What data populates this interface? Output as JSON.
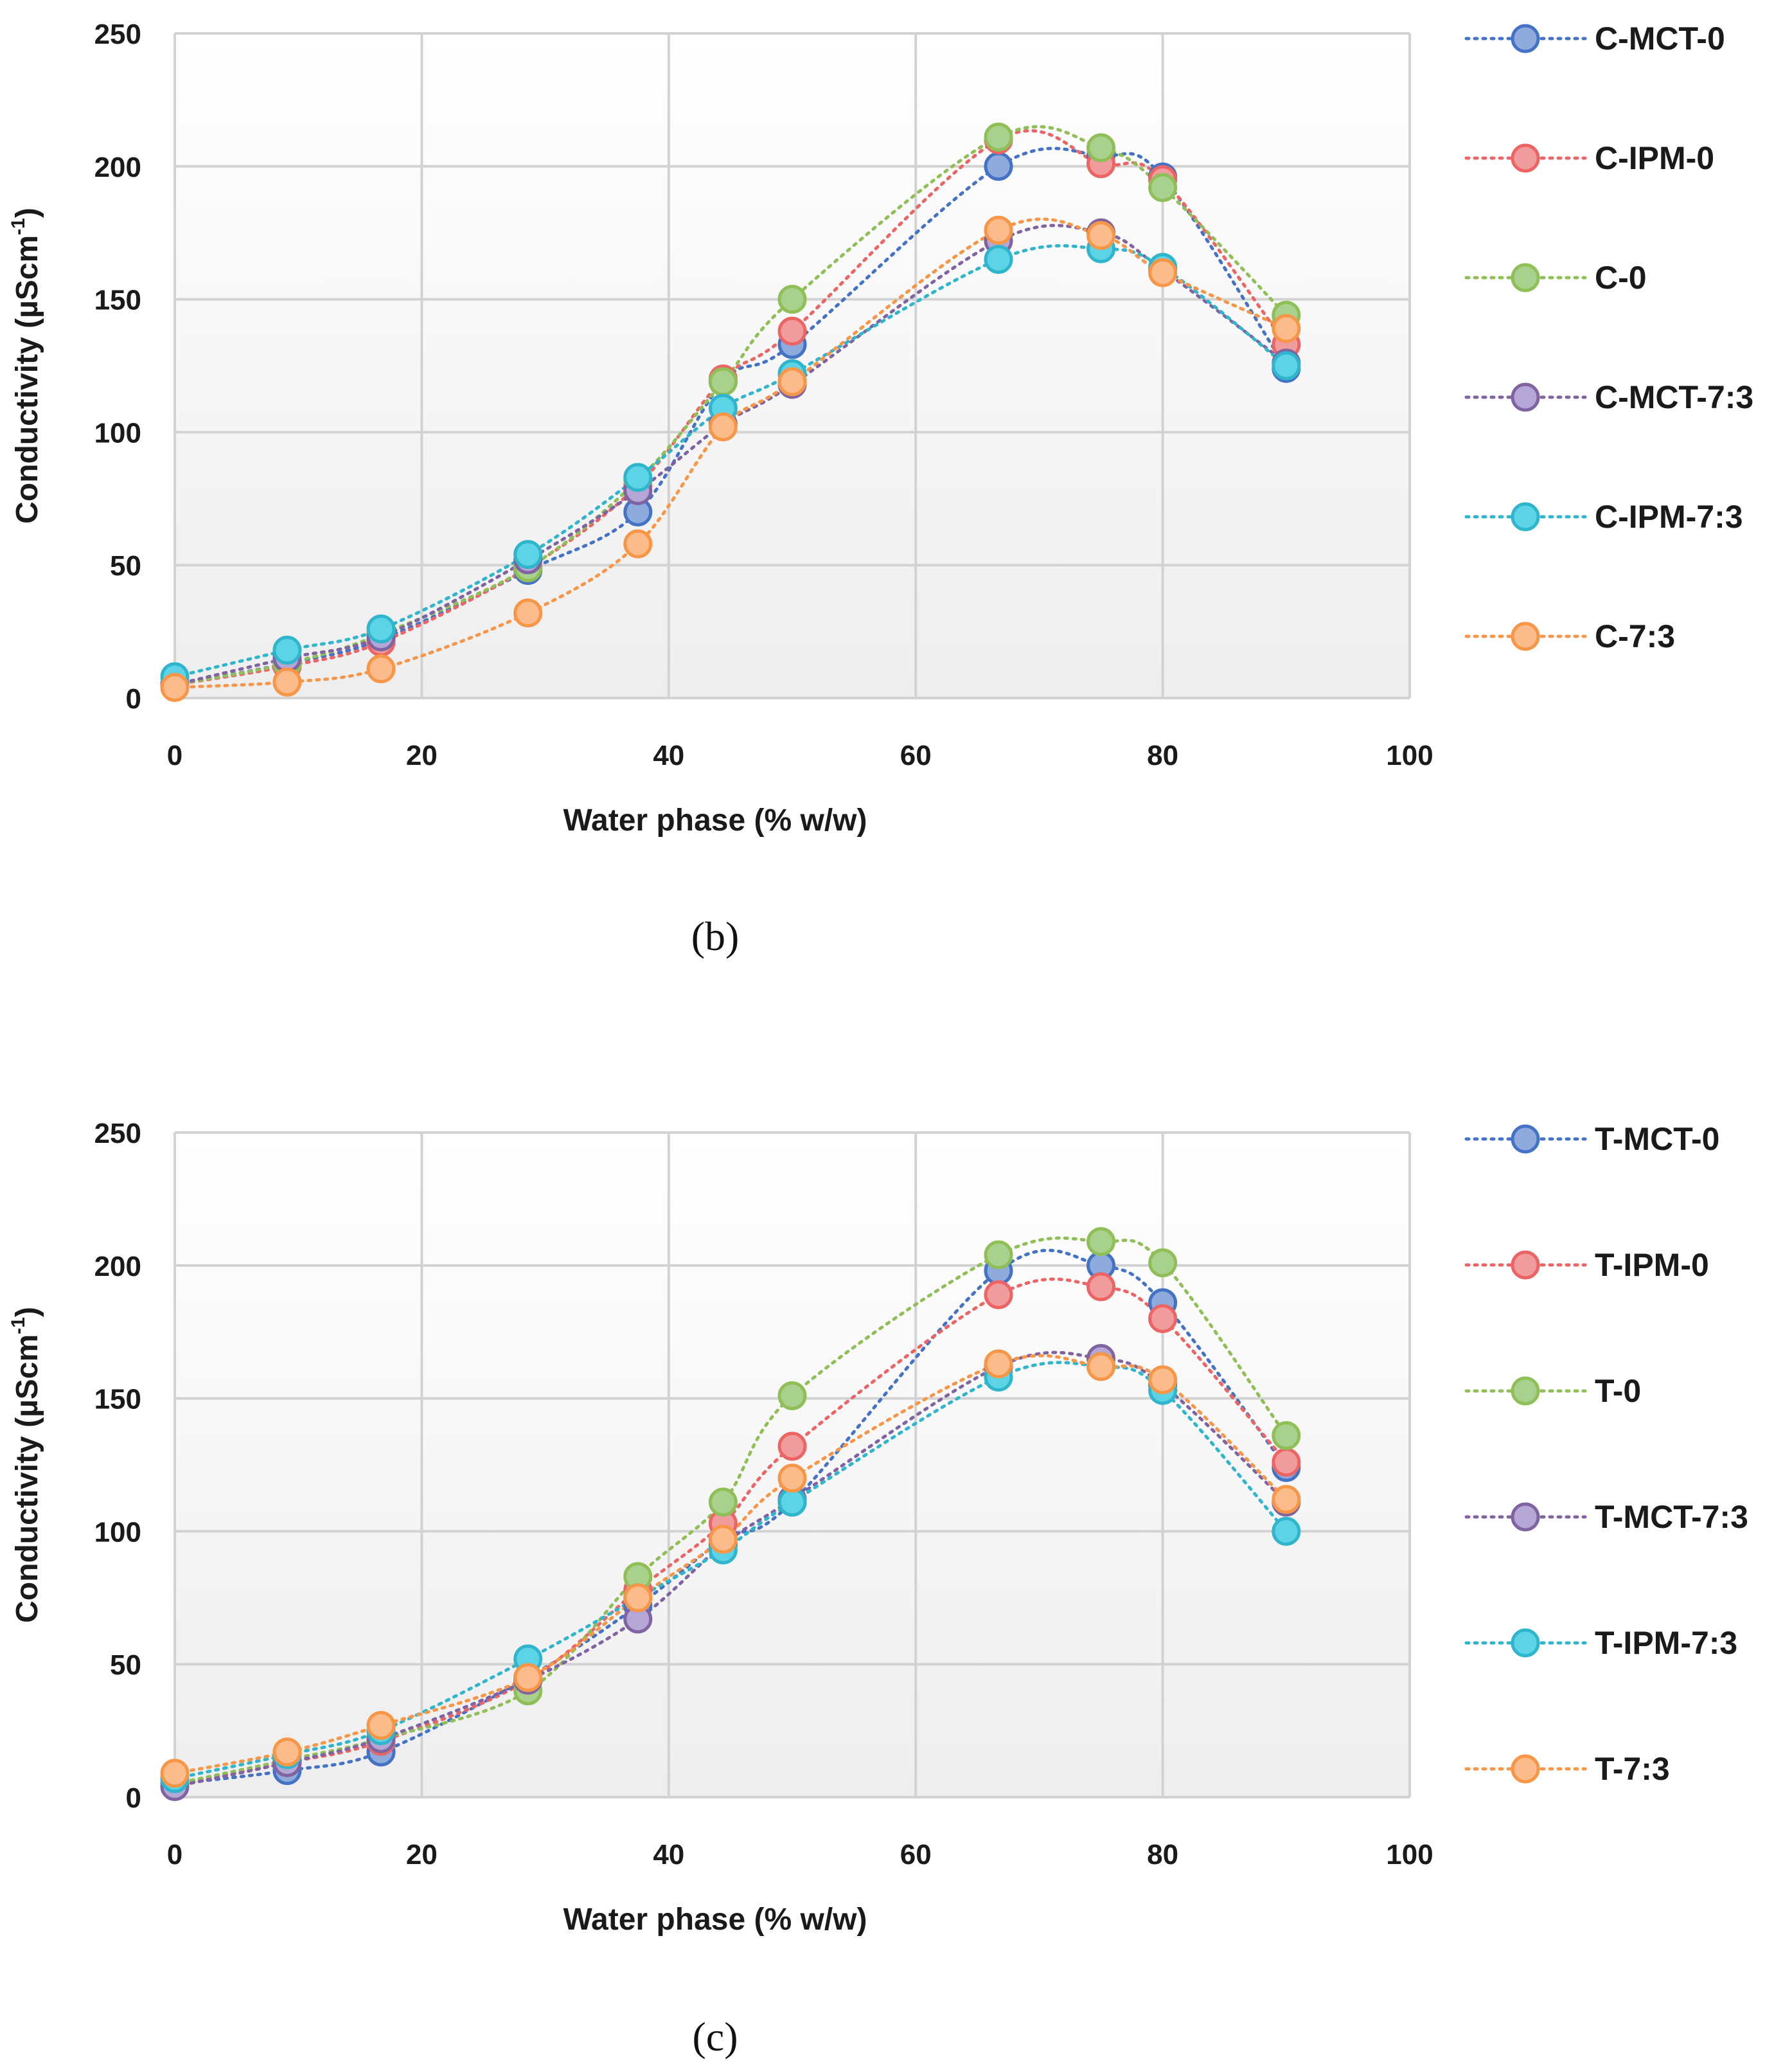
{
  "chart_data": [
    {
      "type": "line",
      "panel_label": "(b)",
      "xlabel": "Water phase (% w/w)",
      "ylabel": "Conductivity (µScm",
      "ylabel_sup": "-1",
      "ylabel_end": ")",
      "xlim": [
        0,
        100
      ],
      "ylim": [
        0,
        250
      ],
      "xticks": [
        "0",
        "20",
        "40",
        "60",
        "80",
        "100"
      ],
      "yticks": [
        "0",
        "50",
        "100",
        "150",
        "200",
        "250"
      ],
      "grid": true,
      "legend_position": "right",
      "x": [
        0,
        9.1,
        16.7,
        28.6,
        37.5,
        44.4,
        50,
        66.7,
        75,
        80,
        90
      ],
      "series": [
        {
          "name": "C-MCT-0",
          "color": "#4472c4",
          "fill": "#8faadc",
          "values": [
            5,
            13,
            22,
            48,
            70,
            119,
            133,
            200,
            204,
            196,
            124
          ]
        },
        {
          "name": "C-IPM-0",
          "color": "#ed6464",
          "fill": "#f19c9c",
          "values": [
            5,
            12,
            21,
            49,
            80,
            120,
            138,
            210,
            201,
            195,
            133
          ]
        },
        {
          "name": "C-0",
          "color": "#8fbf56",
          "fill": "#a9d18e",
          "values": [
            5,
            13,
            24,
            49,
            82,
            119,
            150,
            211,
            207,
            192,
            144
          ]
        },
        {
          "name": "C-MCT-7:3",
          "color": "#8064a2",
          "fill": "#b4a7d6",
          "values": [
            5,
            15,
            23,
            52,
            78,
            103,
            118,
            172,
            175,
            161,
            126
          ]
        },
        {
          "name": "C-IPM-7:3",
          "color": "#2fb5cc",
          "fill": "#5dd3e6",
          "values": [
            8,
            18,
            26,
            54,
            83,
            109,
            122,
            165,
            169,
            162,
            125
          ]
        },
        {
          "name": "C-7:3",
          "color": "#f79646",
          "fill": "#fbbb8a",
          "values": [
            4,
            6,
            11,
            32,
            58,
            102,
            119,
            176,
            174,
            160,
            139
          ]
        }
      ]
    },
    {
      "type": "line",
      "panel_label": "(c)",
      "xlabel": "Water phase (% w/w)",
      "ylabel": "Conductivity (µScm",
      "ylabel_sup": "-1",
      "ylabel_end": ")",
      "xlim": [
        0,
        100
      ],
      "ylim": [
        0,
        250
      ],
      "xticks": [
        "0",
        "20",
        "40",
        "60",
        "80",
        "100"
      ],
      "yticks": [
        "0",
        "50",
        "100",
        "150",
        "200",
        "250"
      ],
      "grid": true,
      "legend_position": "right",
      "x": [
        0,
        9.1,
        16.7,
        28.6,
        37.5,
        44.4,
        50,
        66.7,
        75,
        80,
        90
      ],
      "series": [
        {
          "name": "T-MCT-0",
          "color": "#4472c4",
          "fill": "#8faadc",
          "values": [
            5,
            10,
            17,
            45,
            72,
            97,
            111,
            198,
            200,
            186,
            124
          ]
        },
        {
          "name": "T-IPM-0",
          "color": "#ed6464",
          "fill": "#f19c9c",
          "values": [
            5,
            13,
            21,
            44,
            78,
            103,
            132,
            189,
            192,
            180,
            126
          ]
        },
        {
          "name": "T-0",
          "color": "#8fbf56",
          "fill": "#a9d18e",
          "values": [
            5,
            14,
            22,
            40,
            83,
            111,
            151,
            204,
            209,
            201,
            136
          ]
        },
        {
          "name": "T-MCT-7:3",
          "color": "#8064a2",
          "fill": "#b4a7d6",
          "values": [
            4,
            13,
            22,
            44,
            67,
            95,
            112,
            162,
            165,
            155,
            111
          ]
        },
        {
          "name": "T-IPM-7:3",
          "color": "#2fb5cc",
          "fill": "#5dd3e6",
          "values": [
            7,
            16,
            25,
            52,
            75,
            93,
            111,
            158,
            162,
            153,
            100
          ]
        },
        {
          "name": "T-7:3",
          "color": "#f79646",
          "fill": "#fbbb8a",
          "values": [
            9,
            17,
            27,
            45,
            75,
            97,
            120,
            163,
            162,
            157,
            112
          ]
        }
      ]
    }
  ]
}
